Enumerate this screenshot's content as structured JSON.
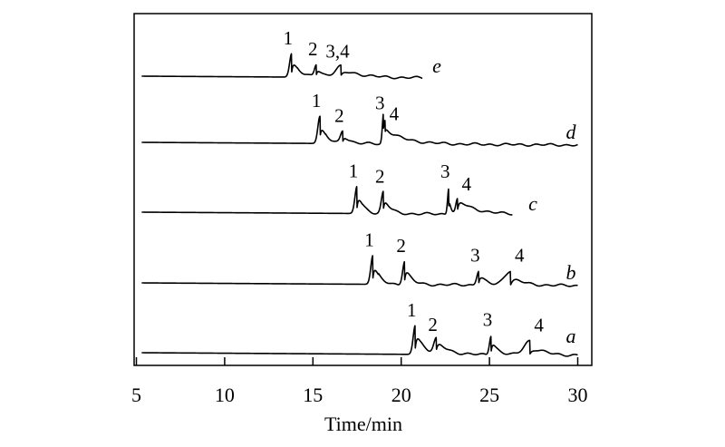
{
  "chart_data": {
    "type": "line",
    "xlabel": "Time/min",
    "ylabel": "",
    "xlim": [
      5,
      30
    ],
    "xticks": [
      5,
      10,
      15,
      20,
      25,
      30
    ],
    "grid": false,
    "series": [
      {
        "name": "e",
        "x_start": 5.3,
        "x_end": 21.2,
        "peaks": [
          {
            "label": "1",
            "t": 13.8,
            "h": 26,
            "w": 0.12,
            "tail": 0.35
          },
          {
            "label": "2",
            "t": 15.2,
            "h": 14,
            "w": 0.11,
            "tail": 0.3
          },
          {
            "label": "3,4",
            "t": 16.6,
            "h": 12,
            "w": 0.33,
            "tail": 0.9
          }
        ]
      },
      {
        "name": "d",
        "x_start": 5.3,
        "x_end": 30.0,
        "peaks": [
          {
            "label": "1",
            "t": 15.4,
            "h": 30,
            "w": 0.12,
            "tail": 0.3
          },
          {
            "label": "2",
            "t": 16.7,
            "h": 14,
            "w": 0.13,
            "tail": 0.3
          },
          {
            "label": "3",
            "t": 19.0,
            "h": 28,
            "w": 0.07,
            "tail": 0.1
          },
          {
            "label": "4",
            "t": 19.1,
            "h": 16,
            "w": 0.08,
            "tail": 1.1
          }
        ]
      },
      {
        "name": "c",
        "x_start": 5.3,
        "x_end": 26.3,
        "peaks": [
          {
            "label": "1",
            "t": 17.5,
            "h": 30,
            "w": 0.12,
            "tail": 0.3
          },
          {
            "label": "2",
            "t": 19.0,
            "h": 24,
            "w": 0.12,
            "tail": 0.3
          },
          {
            "label": "3",
            "t": 22.7,
            "h": 30,
            "w": 0.07,
            "tail": 0.1
          },
          {
            "label": "4",
            "t": 23.2,
            "h": 16,
            "w": 0.1,
            "tail": 1.0
          }
        ]
      },
      {
        "name": "b",
        "x_start": 5.3,
        "x_end": 30.0,
        "peaks": [
          {
            "label": "1",
            "t": 18.4,
            "h": 32,
            "w": 0.12,
            "tail": 0.3
          },
          {
            "label": "2",
            "t": 20.2,
            "h": 26,
            "w": 0.12,
            "tail": 0.3
          },
          {
            "label": "3",
            "t": 24.4,
            "h": 16,
            "w": 0.12,
            "tail": 0.3
          },
          {
            "label": "4",
            "t": 26.2,
            "h": 16,
            "w": 0.35,
            "tail": 0.5
          }
        ]
      },
      {
        "name": "a",
        "x_start": 5.3,
        "x_end": 30.0,
        "peaks": [
          {
            "label": "1",
            "t": 20.8,
            "h": 32,
            "w": 0.12,
            "tail": 0.4
          },
          {
            "label": "2",
            "t": 22.0,
            "h": 16,
            "w": 0.15,
            "tail": 0.6
          },
          {
            "label": "3",
            "t": 25.1,
            "h": 22,
            "w": 0.1,
            "tail": 0.3
          },
          {
            "label": "4",
            "t": 27.3,
            "h": 16,
            "w": 0.35,
            "tail": 0.6
          }
        ]
      }
    ]
  }
}
